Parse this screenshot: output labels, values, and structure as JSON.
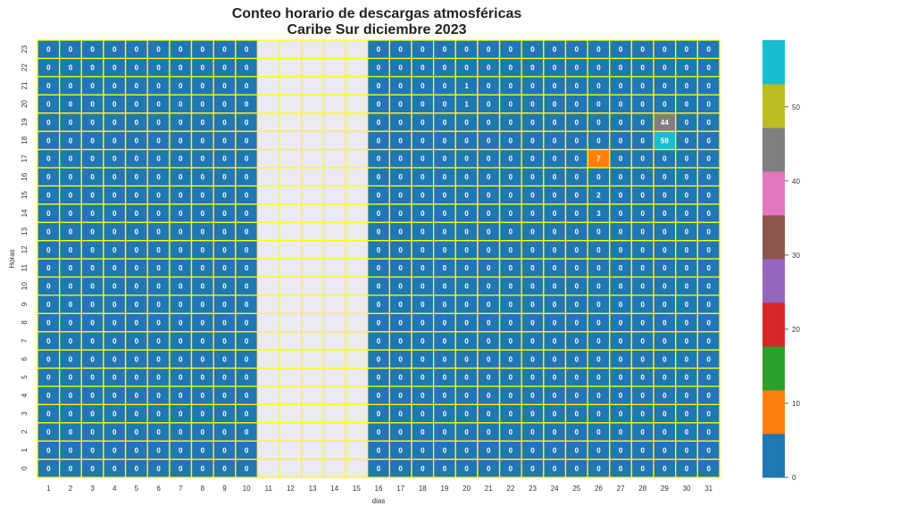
{
  "chart_data": {
    "type": "heatmap",
    "title": "Conteo horario de descargas atmosféricas",
    "subtitle": "Caribe Sur diciembre 2023",
    "xlabel": "dias",
    "ylabel": "Horas",
    "x_categories": [
      "1",
      "2",
      "3",
      "4",
      "5",
      "6",
      "7",
      "8",
      "9",
      "10",
      "11",
      "12",
      "13",
      "14",
      "15",
      "16",
      "17",
      "18",
      "19",
      "20",
      "21",
      "22",
      "23",
      "24",
      "25",
      "26",
      "27",
      "28",
      "29",
      "30",
      "31"
    ],
    "y_categories": [
      "0",
      "1",
      "2",
      "3",
      "4",
      "5",
      "6",
      "7",
      "8",
      "9",
      "10",
      "11",
      "12",
      "13",
      "14",
      "15",
      "16",
      "17",
      "18",
      "19",
      "20",
      "21",
      "22",
      "23"
    ],
    "missing_days": [
      11,
      12,
      13,
      14,
      15
    ],
    "default_value": 0,
    "nonzero_cells": [
      {
        "day": 20,
        "hour": 20,
        "value": 1
      },
      {
        "day": 20,
        "hour": 21,
        "value": 1
      },
      {
        "day": 29,
        "hour": 19,
        "value": 44
      },
      {
        "day": 29,
        "hour": 18,
        "value": 59
      },
      {
        "day": 26,
        "hour": 17,
        "value": 7
      },
      {
        "day": 26,
        "hour": 15,
        "value": 2
      },
      {
        "day": 26,
        "hour": 14,
        "value": 3
      }
    ],
    "colorbar": {
      "range": [
        0,
        59
      ],
      "ticks": [
        0,
        10,
        20,
        30,
        40,
        50
      ],
      "colors": [
        "#1f77b4",
        "#ff7f0e",
        "#2ca02c",
        "#d62728",
        "#9467bd",
        "#8c564b",
        "#e377c2",
        "#7f7f7f",
        "#bcbd22",
        "#17becf"
      ]
    },
    "missing_color": "#eaeaf2",
    "cell_border_color": "#ffff00"
  }
}
